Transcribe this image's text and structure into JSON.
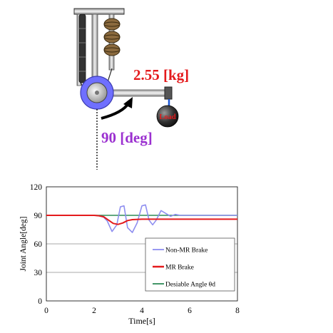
{
  "diagram": {
    "mass_label": "2.55 [kg]",
    "angle_label": "90 [deg]",
    "load_label": "Load",
    "colors": {
      "mass_label": "#e41a1c",
      "angle_label": "#9b30d0",
      "hub": "#6f6fff",
      "load_text": "#e41a1c"
    }
  },
  "chart_data": {
    "type": "line",
    "xlabel": "Time[s]",
    "ylabel": "Joint Angle[deg]",
    "xlim": [
      0,
      8
    ],
    "ylim": [
      0,
      120
    ],
    "xticks": [
      0,
      2,
      4,
      6,
      8
    ],
    "yticks": [
      0,
      30,
      60,
      90,
      120
    ],
    "grid": "horizontal",
    "legend_position": "bottom-right",
    "series": [
      {
        "name": "Non-MR Brake",
        "color": "#8e8ef0",
        "x": [
          0,
          1.5,
          2.0,
          2.2,
          2.4,
          2.55,
          2.75,
          2.95,
          3.1,
          3.25,
          3.4,
          3.6,
          3.8,
          4.0,
          4.15,
          4.3,
          4.45,
          4.6,
          4.8,
          5.0,
          5.2,
          5.4,
          5.6,
          8
        ],
        "y": [
          90,
          90,
          90,
          89.5,
          88,
          84,
          73,
          80,
          99,
          100,
          77,
          72,
          82,
          100,
          101,
          85,
          80,
          85,
          95,
          92,
          89,
          91,
          90,
          90
        ]
      },
      {
        "name": "MR Brake",
        "color": "#e41a1c",
        "x": [
          0,
          2.0,
          2.2,
          2.4,
          2.6,
          2.8,
          3.0,
          3.2,
          3.4,
          3.6,
          4.0,
          8
        ],
        "y": [
          90,
          90,
          89.5,
          88.5,
          85,
          81.5,
          80.5,
          82,
          84.5,
          85.5,
          86,
          86
        ]
      },
      {
        "name": "Desiable Angle θd",
        "color": "#2e8b57",
        "x": [
          0,
          8
        ],
        "y": [
          90,
          90
        ]
      }
    ]
  }
}
